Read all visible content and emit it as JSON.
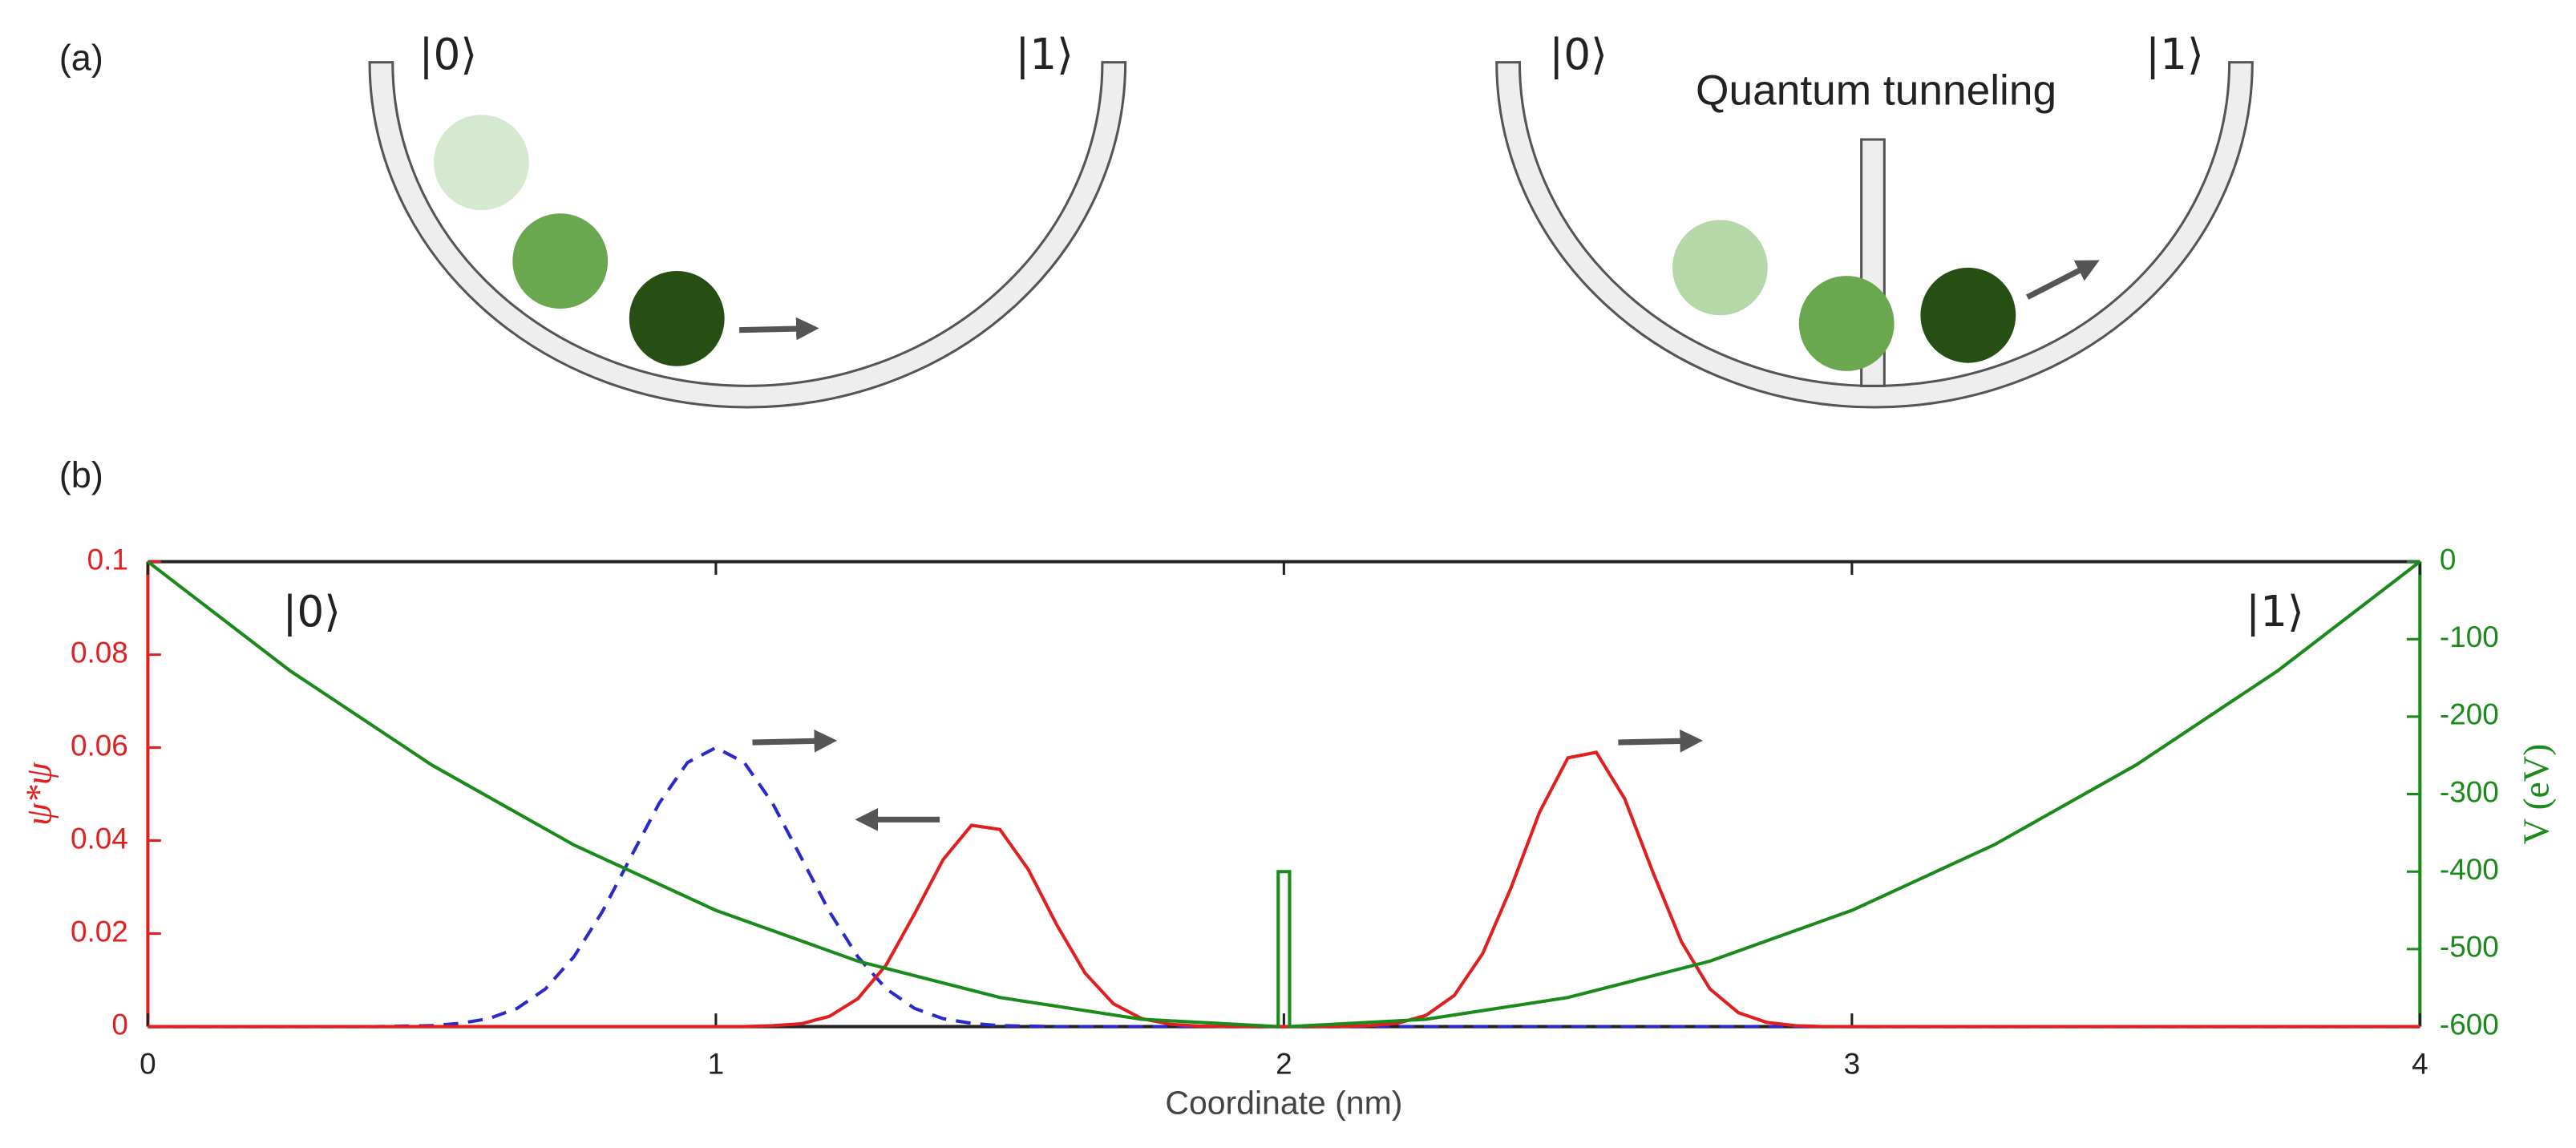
{
  "panels": {
    "a": {
      "label": "(a)",
      "left": {
        "ket0": "|0⟩",
        "ket1": "|1⟩"
      },
      "right": {
        "ket0": "|0⟩",
        "ket1": "|1⟩",
        "caption": "Quantum tunneling"
      }
    },
    "b": {
      "label": "(b)"
    }
  },
  "chart_data": {
    "type": "line",
    "xlabel": "Coordinate (nm)",
    "ylabel": "ψ*ψ",
    "y2label": "V (eV)",
    "annotations": [
      "|0⟩",
      "|1⟩"
    ],
    "xlim": [
      0,
      4
    ],
    "xticks": [
      0,
      1,
      2,
      3,
      4
    ],
    "ylim": [
      0,
      0.1
    ],
    "yticks": [
      0,
      0.02,
      0.04,
      0.06,
      0.08,
      0.1
    ],
    "ycolor": "#e02020",
    "y2lim": [
      -600,
      0
    ],
    "y2ticks": [
      -600,
      -500,
      -400,
      -300,
      -200,
      -100,
      0
    ],
    "y2color": "#1a8a1a",
    "x": [
      0,
      0.05,
      0.1,
      0.15,
      0.2,
      0.25,
      0.3,
      0.35,
      0.4,
      0.45,
      0.5,
      0.55,
      0.6,
      0.65,
      0.7,
      0.75,
      0.8,
      0.85,
      0.9,
      0.95,
      1,
      1.05,
      1.1,
      1.15,
      1.2,
      1.25,
      1.3,
      1.35,
      1.4,
      1.45,
      1.5,
      1.55,
      1.6,
      1.65,
      1.7,
      1.75,
      1.8,
      1.85,
      1.9,
      1.95,
      2,
      2.05,
      2.1,
      2.15,
      2.2,
      2.25,
      2.3,
      2.35,
      2.4,
      2.45,
      2.5,
      2.55,
      2.6,
      2.65,
      2.7,
      2.75,
      2.8,
      2.85,
      2.9,
      2.95,
      3,
      3.05,
      3.1,
      3.15,
      3.2,
      3.25,
      3.3,
      3.35,
      3.4,
      3.45,
      3.5,
      3.55,
      3.6,
      3.65,
      3.7,
      3.75,
      3.8,
      3.85,
      3.9,
      3.95,
      4
    ],
    "series": [
      {
        "color": "#2a2acc",
        "dashed": true,
        "values": [
          0,
          0,
          0,
          0,
          0,
          0,
          0,
          0,
          0,
          0.0001,
          0.0002,
          0.0007,
          0.0017,
          0.0039,
          0.0081,
          0.015,
          0.0247,
          0.0364,
          0.048,
          0.0568,
          0.06,
          0.0568,
          0.048,
          0.0364,
          0.0247,
          0.015,
          0.0081,
          0.0039,
          0.0017,
          0.0007,
          0.0002,
          0.0001,
          0,
          0,
          0,
          0,
          0,
          0,
          0,
          0,
          0,
          0,
          0,
          0,
          0,
          0,
          0,
          0,
          0,
          0,
          0,
          0,
          0,
          0,
          0,
          0,
          0,
          0,
          0,
          0,
          0,
          0,
          0,
          0,
          0,
          0,
          0,
          0,
          0,
          0,
          0,
          0,
          0,
          0,
          0,
          0,
          0,
          0,
          0,
          0,
          0
        ]
      },
      {
        "color": "#e02020",
        "values": [
          0,
          0,
          0,
          0,
          0,
          0,
          0,
          0,
          0,
          0,
          0,
          0,
          0,
          0,
          0,
          0,
          0,
          0,
          0,
          0,
          0,
          0,
          0.0002,
          0.0006,
          0.0022,
          0.006,
          0.0133,
          0.0243,
          0.0359,
          0.0433,
          0.0424,
          0.0338,
          0.0219,
          0.0115,
          0.0049,
          0.0017,
          0.0005,
          0.0001,
          0,
          0,
          0,
          0,
          0,
          0.0002,
          0.0007,
          0.0024,
          0.0067,
          0.0157,
          0.0299,
          0.0461,
          0.0578,
          0.059,
          0.049,
          0.0331,
          0.0182,
          0.0081,
          0.003,
          0.0009,
          0.0002,
          0,
          0,
          0,
          0,
          0,
          0,
          0,
          0,
          0,
          0,
          0,
          0,
          0,
          0,
          0,
          0,
          0,
          0,
          0,
          0,
          0,
          0
        ]
      },
      {
        "color": "#1a8a1a",
        "axis": "y2",
        "x": [
          0,
          0.25,
          0.5,
          0.75,
          1,
          1.25,
          1.5,
          1.75,
          1.99,
          1.99,
          2.01,
          2.01,
          2.25,
          2.5,
          2.75,
          3,
          3.25,
          3.5,
          3.75,
          4
        ],
        "values": [
          0,
          -140.6,
          -262.5,
          -365.6,
          -450,
          -515.6,
          -562.5,
          -590.6,
          -600,
          -400,
          -400,
          -600,
          -590.6,
          -562.5,
          -515.6,
          -450,
          -365.6,
          -262.5,
          -140.6,
          0
        ]
      }
    ]
  }
}
